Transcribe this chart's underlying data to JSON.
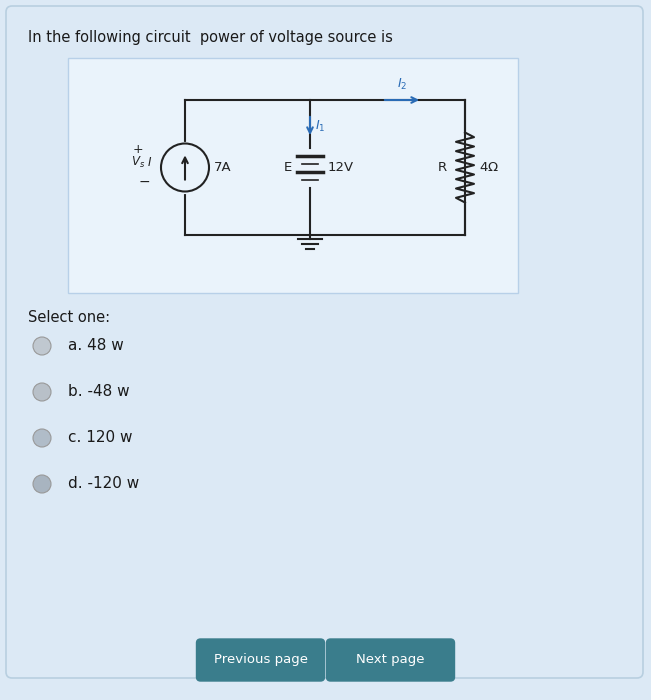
{
  "bg_outer": "#dce9f5",
  "bg_card": "#dce9f5",
  "bg_circuit": "#eaf3fb",
  "title": "In the following circuit  power of voltage source is",
  "title_fontsize": 10.5,
  "select_one": "Select one:",
  "options": [
    "a. 48 w",
    "b. -48 w",
    "c. 120 w",
    "d. -120 w"
  ],
  "btn_color": "#3a7d8c",
  "btn_text_color": "#ffffff",
  "btn1": "Previous page",
  "btn2": "Next page",
  "circuit_color": "#222222",
  "blue_color": "#2a6bb5",
  "radio_colors": [
    "#c0c8d0",
    "#b8c0c8",
    "#b0bcc8",
    "#a8b4c0"
  ],
  "card_edge": "#b8cfe0"
}
